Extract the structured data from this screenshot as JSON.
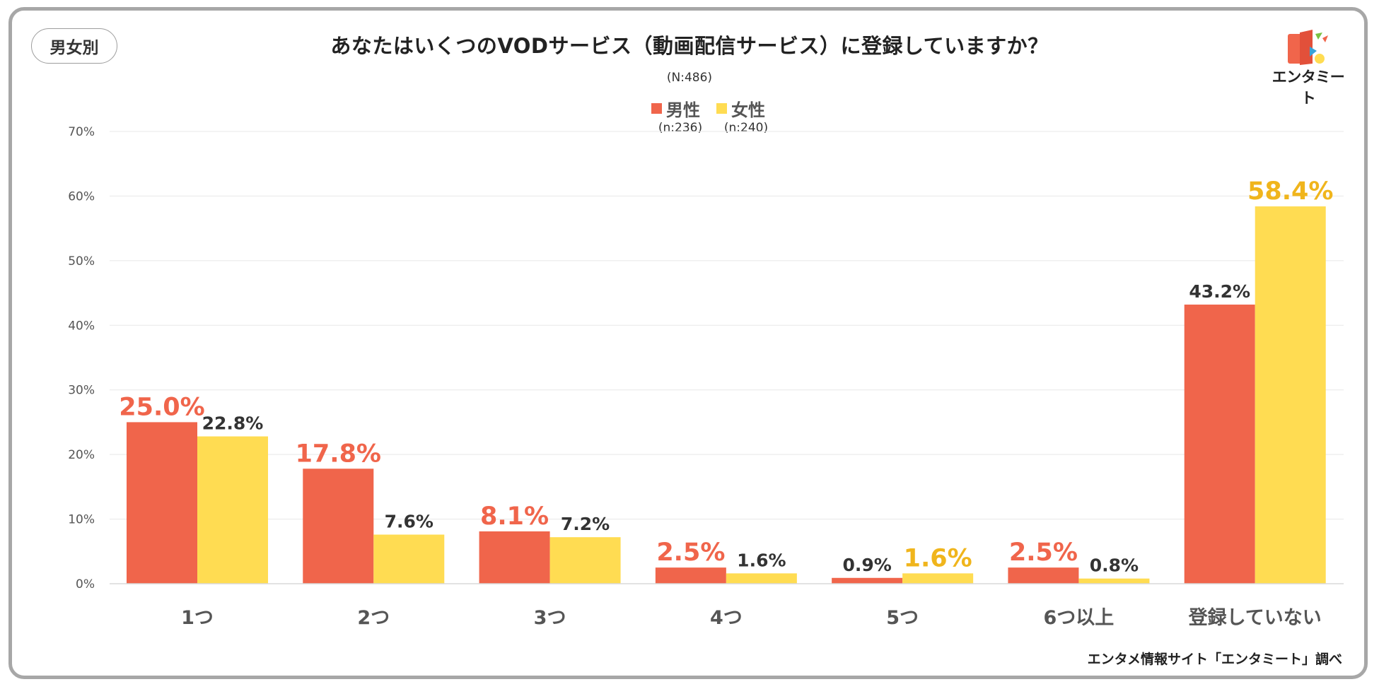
{
  "badge": "男女別",
  "total_n": "(N:486)",
  "logo_text": "エンタミート",
  "source": "エンタメ情報サイト「エンタミート」調べ",
  "colors": {
    "male": "#f0654b",
    "female": "#ffdc52",
    "highlight_female_text": "#f0b51c",
    "default_text": "#333333",
    "grid": "#e8e8e8"
  },
  "chart_data": {
    "type": "bar",
    "title": "あなたはいくつのVODサービス（動画配信サービス）に登録していますか？",
    "categories": [
      "1つ",
      "2つ",
      "3つ",
      "4つ",
      "5つ",
      "6つ以上",
      "登録していない"
    ],
    "series": [
      {
        "name": "男性",
        "n_label": "(n:236)",
        "values": [
          25.0,
          17.8,
          8.1,
          2.5,
          0.9,
          2.5,
          43.2
        ],
        "labels": [
          "25.0%",
          "17.8%",
          "8.1%",
          "2.5%",
          "0.9%",
          "2.5%",
          "43.2%"
        ],
        "highlight": [
          true,
          true,
          true,
          true,
          false,
          true,
          false
        ]
      },
      {
        "name": "女性",
        "n_label": "(n:240)",
        "values": [
          22.8,
          7.6,
          7.2,
          1.6,
          1.6,
          0.8,
          58.4
        ],
        "labels": [
          "22.8%",
          "7.6%",
          "7.2%",
          "1.6%",
          "1.6%",
          "0.8%",
          "58.4%"
        ],
        "highlight": [
          false,
          false,
          false,
          false,
          true,
          false,
          true
        ]
      }
    ],
    "ylim": [
      0,
      70
    ],
    "yticks": [
      0,
      10,
      20,
      30,
      40,
      50,
      60,
      70
    ],
    "ytick_labels": [
      "0%",
      "10%",
      "20%",
      "30%",
      "40%",
      "50%",
      "60%",
      "70%"
    ],
    "xlabel": "",
    "ylabel": "",
    "grid": true,
    "legend_position": "top-center"
  }
}
